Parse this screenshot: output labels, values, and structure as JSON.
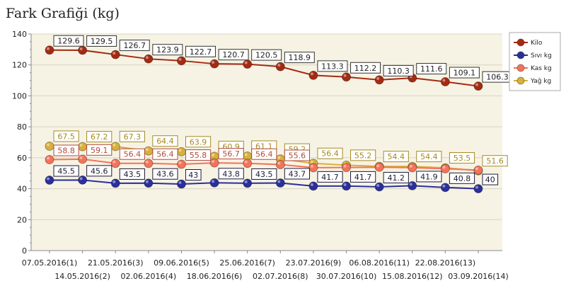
{
  "chart_data": {
    "type": "line",
    "title": "Fark Grafiği (kg)",
    "xlabel": "",
    "ylabel": "",
    "ylim": [
      0,
      140
    ],
    "yticks": [
      0,
      20,
      40,
      60,
      80,
      100,
      120,
      140
    ],
    "grid": true,
    "legend_position": "top-right",
    "categories": [
      "07.05.2016(1)",
      "14.05.2016(2)",
      "21.05.2016(3)",
      "02.06.2016(4)",
      "09.06.2016(5)",
      "18.06.2016(6)",
      "25.06.2016(7)",
      "02.07.2016(8)",
      "23.07.2016(9)",
      "30.07.2016(10)",
      "06.08.2016(11)",
      "15.08.2016(12)",
      "22.08.2016(13)",
      "03.09.2016(14)"
    ],
    "series": [
      {
        "name": "Kilo",
        "color": "#a52a12",
        "label_color": "#222222",
        "values": [
          129.6,
          129.5,
          126.7,
          123.9,
          122.7,
          120.7,
          120.5,
          118.9,
          113.3,
          112.2,
          110.3,
          111.6,
          109.1,
          106.3
        ]
      },
      {
        "name": "Sıvı kg",
        "color": "#2a2f9c",
        "label_color": "#1a1a3a",
        "values": [
          45.5,
          45.6,
          43.5,
          43.6,
          43,
          43.8,
          43.5,
          43.7,
          41.7,
          41.7,
          41.2,
          41.9,
          40.8,
          40
        ]
      },
      {
        "name": "Kas kg",
        "color": "#f4735a",
        "label_color": "#b04a3a",
        "values": [
          58.8,
          59.1,
          56.4,
          56.4,
          55.8,
          56.7,
          56.4,
          55.6,
          53.6,
          53.7,
          53.9,
          53.6,
          52.9,
          52.0
        ]
      },
      {
        "name": "Yağ kg",
        "color": "#d8b03a",
        "label_color": "#a58a20",
        "values": [
          67.5,
          67.2,
          67.3,
          64.4,
          63.9,
          60.9,
          61.1,
          59.2,
          56.4,
          55.2,
          54.4,
          54.4,
          53.5,
          51.6
        ]
      }
    ],
    "visible_labels": {
      "Kilo": [
        "129.6",
        "129.5",
        "126.7",
        "123.9",
        "122.7",
        "120.7",
        "120.5",
        "118.9",
        "113.3",
        "112.2",
        "110.3",
        "111.6",
        "109.1",
        "106.3"
      ],
      "Sıvı kg": [
        "45.5",
        "45.6",
        "43.5",
        "43.6",
        "43",
        "43.8",
        "43.5",
        "43.7",
        "41.7",
        "41.7",
        "41.2",
        "41.9",
        "40.8",
        "40"
      ],
      "Kas kg": [
        "58.8",
        "59.1",
        "56.4",
        "56.4",
        "55.8",
        "56.7",
        "56.4",
        "55.6",
        "",
        "",
        "",
        "",
        "",
        ""
      ],
      "Yağ kg": [
        "67.5",
        "67.2",
        "67.3",
        "64.4",
        "63.9",
        "60.9",
        "61.1",
        "59.2",
        "56.4",
        "55.2",
        "54.4",
        "54.4",
        "53.5",
        "51.6"
      ]
    },
    "colors": {
      "plot_background": "#f7f3e4",
      "grid_line": "#d8d4c4",
      "axis_line": "#888888"
    }
  }
}
